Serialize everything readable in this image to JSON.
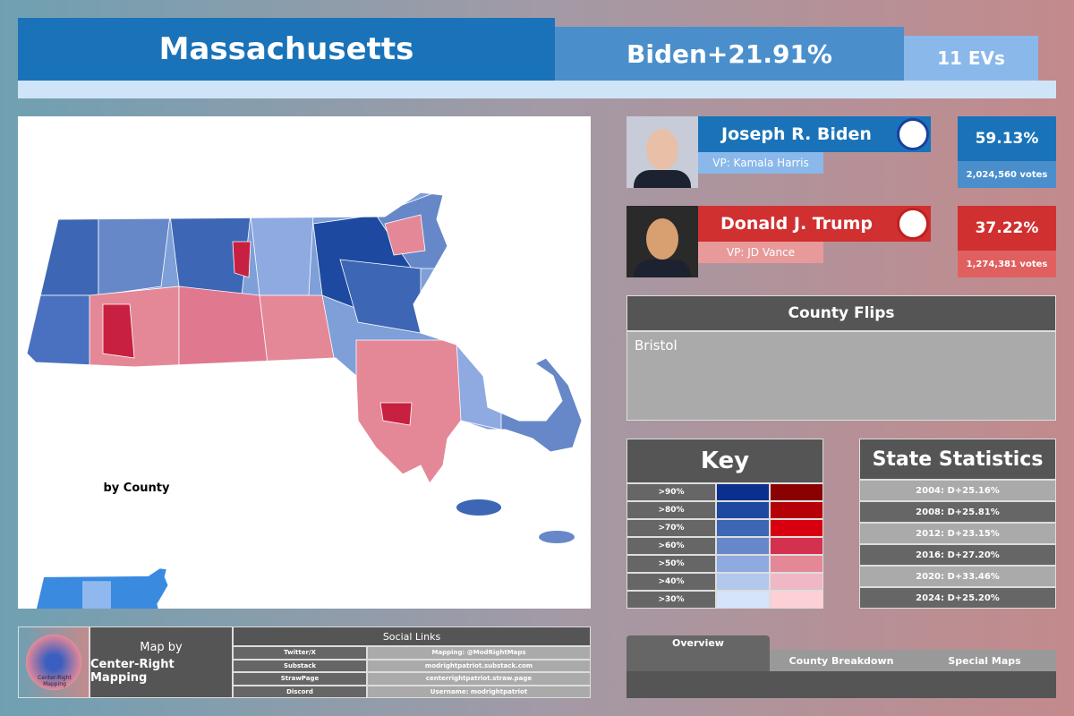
{
  "header": {
    "state": "Massachusetts",
    "margin": "Biden+21.91%",
    "electoral_votes": "11 EVs"
  },
  "map": {
    "inset_label": "by County"
  },
  "candidates": [
    {
      "name": "Joseph R. Biden",
      "running_mate": "VP: Kamala Harris",
      "percent": "59.13%",
      "votes": "2,024,560 votes"
    },
    {
      "name": "Donald J. Trump",
      "running_mate": "VP: JD Vance",
      "percent": "37.22%",
      "votes": "1,274,381 votes"
    }
  ],
  "county_flips": {
    "title": "County Flips",
    "items": [
      "Bristol"
    ]
  },
  "key": {
    "title": "Key",
    "rows": [
      ">90%",
      ">80%",
      ">70%",
      ">60%",
      ">50%",
      ">40%",
      ">30%"
    ]
  },
  "state_statistics": {
    "title": "State Statistics",
    "rows": [
      "2004: D+25.16%",
      "2008: D+25.81%",
      "2012: D+23.15%",
      "2016: D+27.20%",
      "2020: D+33.46%",
      "2024: D+25.20%"
    ]
  },
  "credits": {
    "logo_text": "Center-Right Mapping",
    "label": "Map by",
    "author": "Center-Right Mapping"
  },
  "social": {
    "title": "Social Links",
    "rows": [
      [
        "Twitter/X",
        "Mapping: @ModRightMaps"
      ],
      [
        "Substack",
        "modrightpatriot.substack.com"
      ],
      [
        "StrawPage",
        "centerrightpatriot.straw.page"
      ],
      [
        "Discord",
        "Username: modrightpatriot"
      ]
    ]
  },
  "tabs": [
    "Overview",
    "County Breakdown",
    "Special Maps"
  ]
}
